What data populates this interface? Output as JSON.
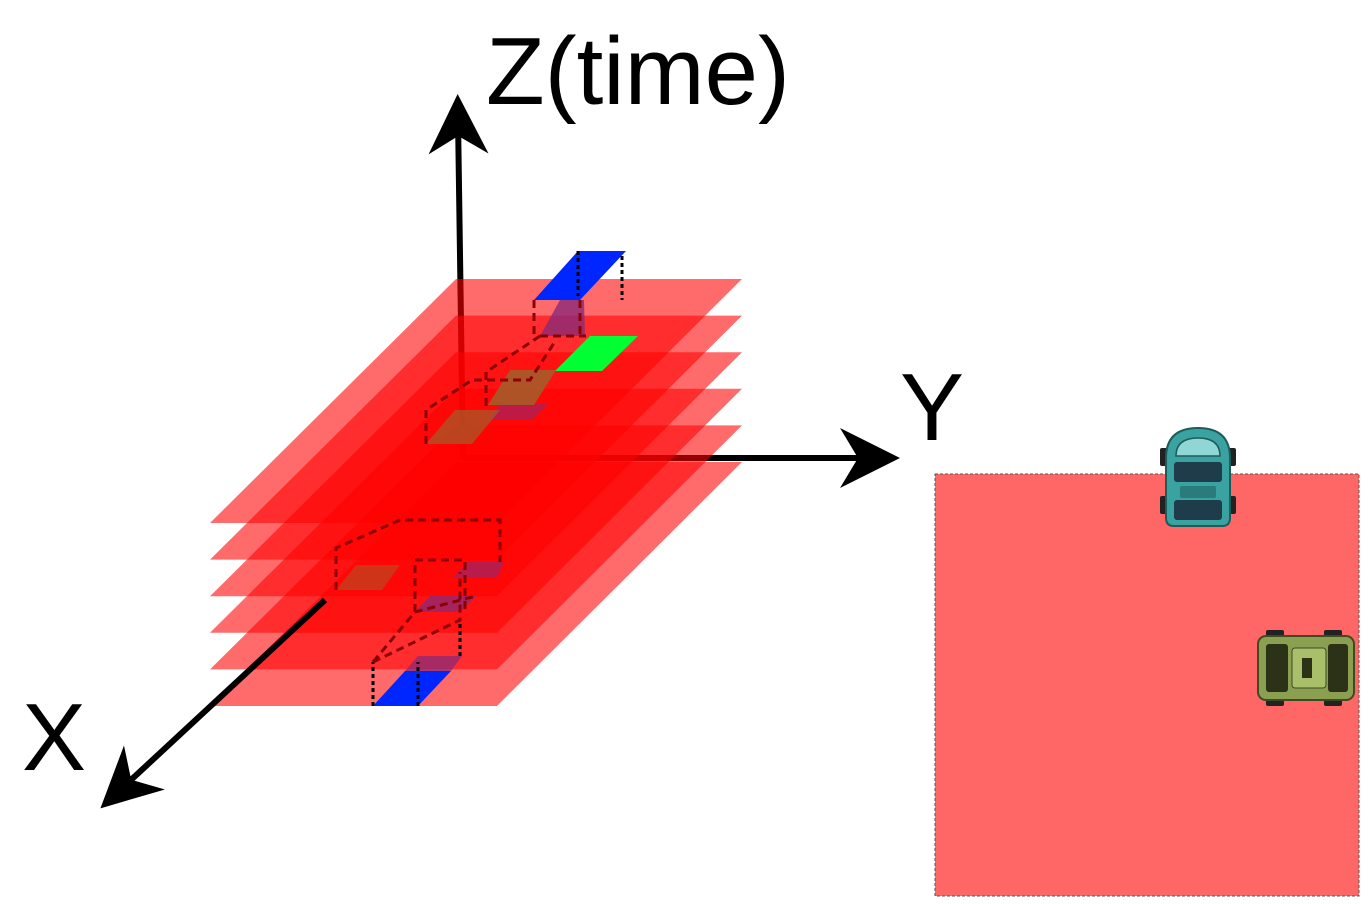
{
  "axes": {
    "z_label": "Z(time)",
    "y_label": "Y",
    "x_label": "X"
  },
  "layers": {
    "count": 6,
    "color": "#ff0000",
    "opacity": 0.58
  },
  "markers": {
    "blue": "#0026ff",
    "green": "#00ff33",
    "purple": "#8a2a78",
    "olive": "#a0602a"
  },
  "map": {
    "fill": "#ff6666",
    "vehicles": [
      {
        "name": "teal-car",
        "color": "#3aa3a1"
      },
      {
        "name": "green-car",
        "color": "#8aa050"
      }
    ]
  }
}
